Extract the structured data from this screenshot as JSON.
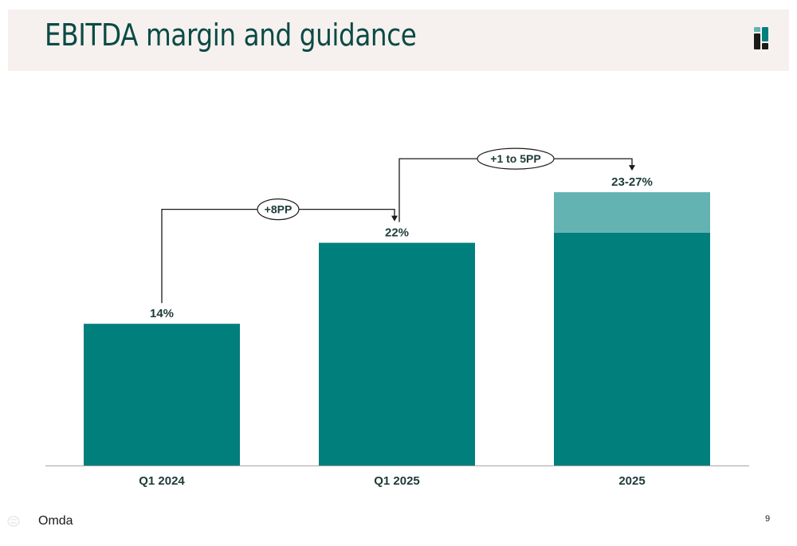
{
  "slide": {
    "title": "EBITDA margin and guidance",
    "footer_brand": "Omda",
    "page_number": "9",
    "logo_icon": "omda-logo-icon"
  },
  "colors": {
    "bar": "#007f7d",
    "bar_range": "#64b3b3",
    "header_band": "#f6f1ee",
    "title": "#0b4a45",
    "connector": "#1a1a1a"
  },
  "chart_data": {
    "type": "bar",
    "categories": [
      "Q1 2024",
      "Q1 2025",
      "2025"
    ],
    "series": [
      {
        "values": [
          14,
          22,
          23
        ]
      },
      {
        "values": [
          0,
          0,
          4
        ]
      }
    ],
    "data_labels": [
      "14%",
      "22%",
      "23-27%"
    ],
    "annotations": [
      {
        "from": "Q1 2024",
        "to": "Q1 2025",
        "label": "+8PP"
      },
      {
        "from": "Q1 2025",
        "to": "2025",
        "label": "+1 to 5PP"
      }
    ],
    "ylim": [
      0,
      27
    ],
    "grid": false,
    "legend": "none"
  }
}
